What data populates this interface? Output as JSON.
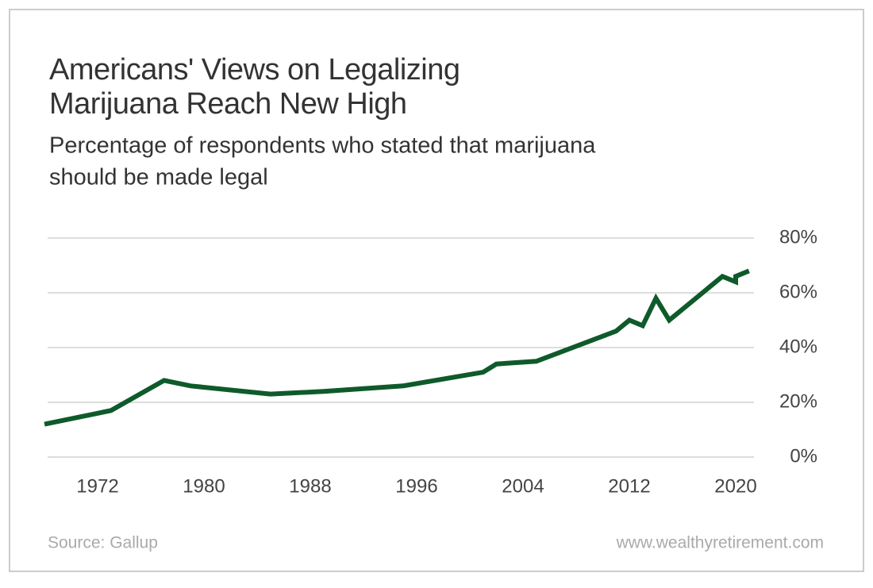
{
  "chart_data": {
    "type": "line",
    "title": [
      "Americans' Views on Legalizing",
      "Marijuana Reach New High"
    ],
    "subtitle": [
      "Percentage of respondents who stated that marijuana",
      "should be made legal"
    ],
    "source": "Source: Gallup",
    "website": "www.wealthyretirement.com",
    "x": [
      1968,
      1973,
      1977,
      1979,
      1985,
      1989,
      1995,
      2001,
      2002,
      2005,
      2011,
      2012,
      2013,
      2014,
      2015,
      2017,
      2019,
      2020,
      2020,
      2021
    ],
    "series": [
      {
        "color": "#0e5a2b",
        "values": [
          12,
          17,
          28,
          26,
          23,
          24,
          26,
          31,
          34,
          35,
          46,
          50,
          48,
          58,
          50,
          58,
          66,
          64,
          66,
          68
        ]
      }
    ],
    "xlim": [
      1968,
      2022
    ],
    "xticks": [
      1972,
      1980,
      1988,
      1996,
      2004,
      2012,
      2020
    ],
    "ylim": [
      0,
      80
    ],
    "yticks": [
      {
        "value": 0,
        "label": "0%"
      },
      {
        "value": 20,
        "label": "20%"
      },
      {
        "value": 40,
        "label": "40%"
      },
      {
        "value": 60,
        "label": "60%"
      },
      {
        "value": 80,
        "label": "80%"
      }
    ],
    "grid": true
  }
}
